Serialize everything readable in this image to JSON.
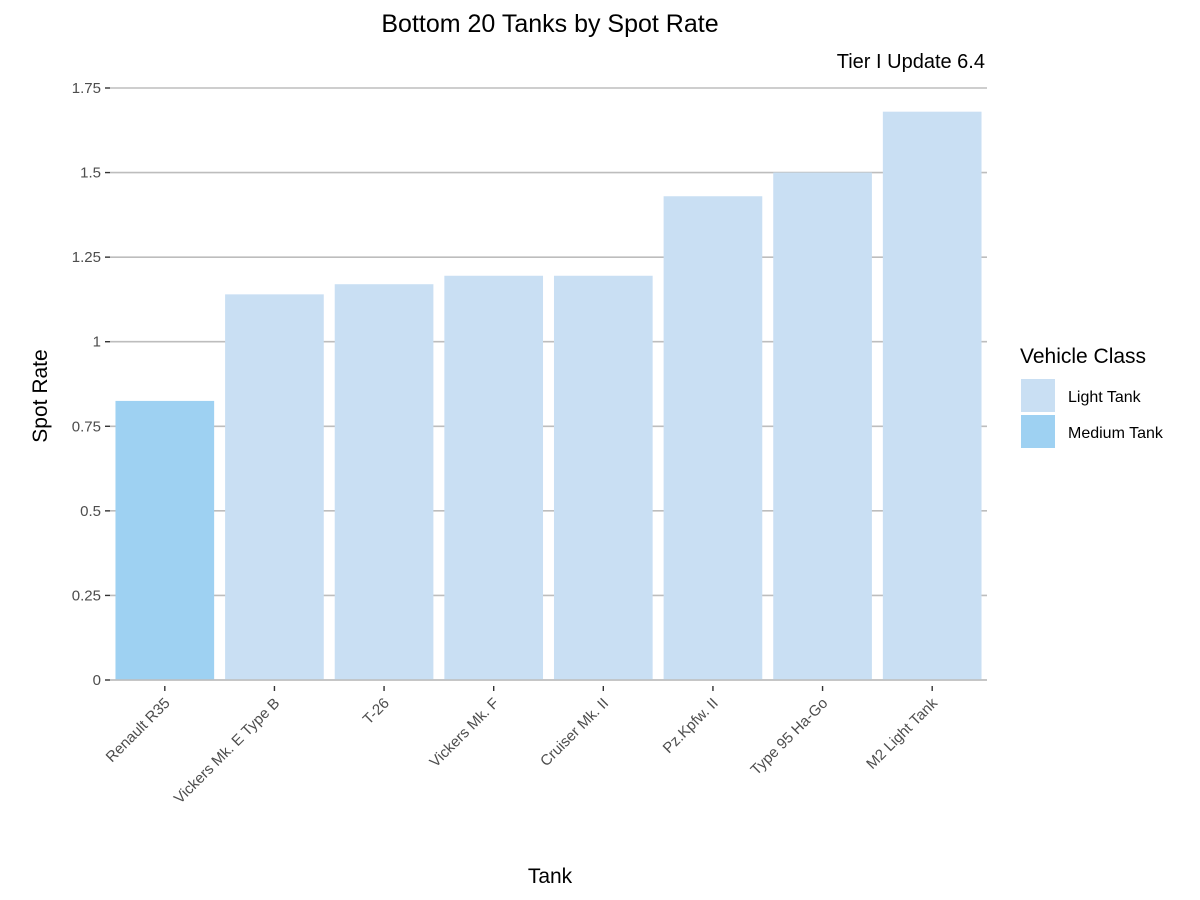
{
  "chart_data": {
    "type": "bar",
    "title": "Bottom 20 Tanks by Spot Rate",
    "subtitle": "Tier I Update 6.4",
    "xlabel": "Tank",
    "ylabel": "Spot Rate",
    "ylim": [
      0,
      1.75
    ],
    "yticks": [
      "0",
      "0.25",
      "0.5",
      "0.75",
      "1",
      "1.25",
      "1.5",
      "1.75"
    ],
    "ytick_values": [
      0,
      0.25,
      0.5,
      0.75,
      1,
      1.25,
      1.5,
      1.75
    ],
    "grid": true,
    "legend_position": "right",
    "categories": [
      "Renault R35",
      "Vickers Mk. E Type B",
      "T-26",
      "Vickers Mk. F",
      "Cruiser Mk. II",
      "Pz.Kpfw. II",
      "Type 95 Ha-Go",
      "M2 Light Tank"
    ],
    "values": [
      0.825,
      1.14,
      1.17,
      1.195,
      1.195,
      1.43,
      1.5,
      1.68
    ],
    "classes": [
      "Medium Tank",
      "Light Tank",
      "Light Tank",
      "Light Tank",
      "Light Tank",
      "Light Tank",
      "Light Tank",
      "Light Tank"
    ],
    "legend": {
      "title": "Vehicle Class",
      "entries": [
        {
          "label": "Light Tank",
          "color": "#c9dff3"
        },
        {
          "label": "Medium Tank",
          "color": "#9ed1f2"
        }
      ]
    }
  }
}
